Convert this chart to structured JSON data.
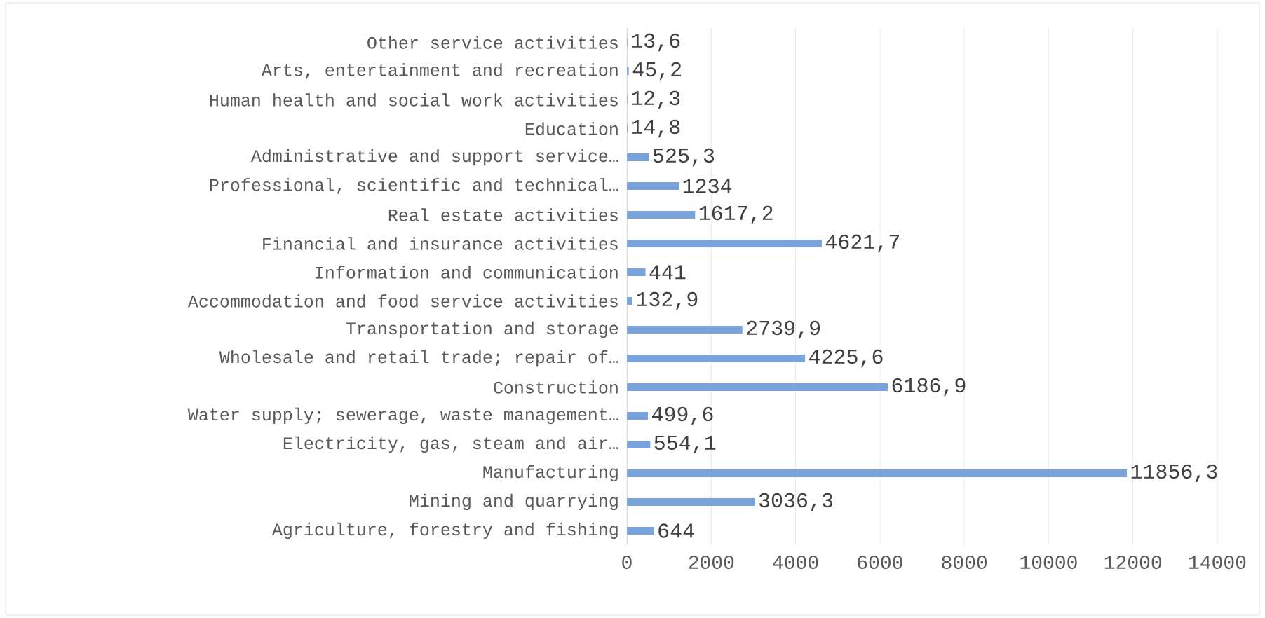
{
  "chart_data": {
    "type": "bar",
    "orientation": "horizontal",
    "categories": [
      "Other service activities",
      "Arts, entertainment and recreation",
      "Human health and social work activities",
      "Education",
      "Administrative and support service…",
      "Professional, scientific and technical…",
      "Real estate activities",
      "Financial and insurance activities",
      "Information and communication",
      "Accommodation and food service activities",
      "Transportation and storage",
      "Wholesale and retail trade; repair of…",
      "Construction",
      "Water supply; sewerage, waste management…",
      "Electricity, gas, steam and air…",
      "Manufacturing",
      "Mining and quarrying",
      "Agriculture, forestry and fishing"
    ],
    "values": [
      13.6,
      45.2,
      12.3,
      14.8,
      525.3,
      1234,
      1617.2,
      4621.7,
      441,
      132.9,
      2739.9,
      4225.6,
      6186.9,
      499.6,
      554.1,
      11856.3,
      3036.3,
      644
    ],
    "value_labels": [
      "13,6",
      "45,2",
      "12,3",
      "14,8",
      "525,3",
      "1234",
      "1617,2",
      "4621,7",
      "441",
      "132,9",
      "2739,9",
      "4225,6",
      "6186,9",
      "499,6",
      "554,1",
      "11856,3",
      "3036,3",
      "644"
    ],
    "color": "#7ba3db",
    "xlim": [
      0,
      14000
    ],
    "xticks": [
      0,
      2000,
      4000,
      6000,
      8000,
      10000,
      12000,
      14000
    ],
    "grid": "x"
  }
}
